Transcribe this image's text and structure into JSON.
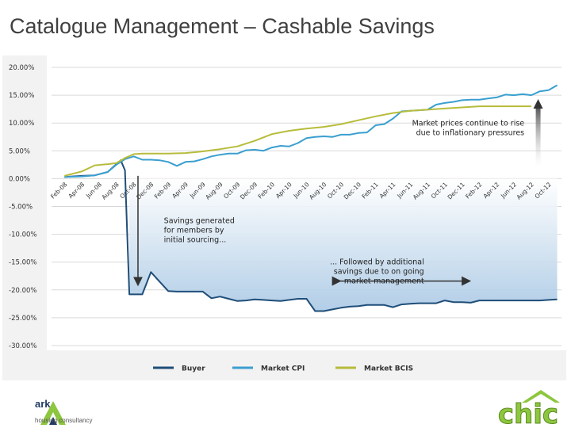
{
  "slide": {
    "title": "Catalogue Management – Cashable Savings"
  },
  "logos": {
    "left": {
      "name": "ark",
      "subtitle": "housing consultancy"
    },
    "right": {
      "name": "chic"
    }
  },
  "colors": {
    "buyer": "#1f4e79",
    "cpi": "#3a9fd0",
    "bcis": "#b7bc3b",
    "shade_top": "#ffffff",
    "shade_bottom": "#a9c8e4"
  },
  "chart_data": {
    "type": "line",
    "title": "",
    "xlabel": "",
    "ylabel": "",
    "ylim": [
      -30,
      20
    ],
    "yticks": [
      20,
      15,
      10,
      5,
      0,
      -5,
      -10,
      -15,
      -20,
      -25,
      -30
    ],
    "ytick_labels": [
      "20.00%",
      "15.00%",
      "10.00%",
      "5.00%",
      "0.00%",
      "-5.00%",
      "-10.00%",
      "-15.00%",
      "-20.00%",
      "-25.00%",
      "-30.00%"
    ],
    "x_ticks": [
      "Feb-08",
      "Apr-08",
      "Jun-08",
      "Aug-08",
      "Oct-08",
      "Dec-08",
      "Feb-09",
      "Apr-09",
      "Jun-09",
      "Aug-09",
      "Oct-09",
      "Dec-09",
      "Feb-10",
      "Apr-10",
      "Jun-10",
      "Aug-10",
      "Oct-10",
      "Dec-10",
      "Feb-11",
      "Apr-11",
      "Jun-11",
      "Aug-11",
      "Oct-11",
      "Dec-11",
      "Feb-12",
      "Apr-12",
      "Jun-12",
      "Aug-12",
      "Oct-12"
    ],
    "x_tick_months": [
      0,
      2,
      4,
      6,
      8,
      10,
      12,
      14,
      16,
      18,
      20,
      22,
      24,
      26,
      28,
      30,
      32,
      34,
      36,
      38,
      40,
      42,
      44,
      46,
      48,
      50,
      52,
      54,
      56
    ],
    "x_start": "Feb-08",
    "x_range_months": [
      -1.5,
      57.5
    ],
    "legend_position": "bottom",
    "grid": true,
    "series": [
      {
        "name": "Buyer",
        "color_key": "buyer",
        "months": [
          0,
          2,
          3.5,
          5,
          6,
          6.5,
          7,
          7.5,
          9,
          10,
          11,
          12,
          13,
          14,
          15,
          16,
          17,
          18,
          19,
          20,
          21,
          22,
          23,
          24,
          25,
          26,
          27,
          28,
          29,
          30,
          31,
          32,
          33,
          34,
          35,
          36,
          37,
          38,
          39,
          40,
          41,
          42,
          43,
          44,
          45,
          46,
          47,
          48,
          49,
          50,
          51,
          52,
          53,
          54,
          55,
          56,
          57
        ],
        "values": [
          0.3,
          0.5,
          0.6,
          1.2,
          2.6,
          3.3,
          1.5,
          -20.8,
          -20.8,
          -16.8,
          -18.5,
          -20.2,
          -20.3,
          -20.3,
          -20.3,
          -20.3,
          -21.5,
          -21.2,
          -21.6,
          -22.0,
          -21.9,
          -21.7,
          -21.8,
          -21.9,
          -22.0,
          -21.8,
          -21.6,
          -21.6,
          -23.8,
          -23.8,
          -23.5,
          -23.2,
          -23.0,
          -22.9,
          -22.7,
          -22.7,
          -22.7,
          -23.1,
          -22.6,
          -22.5,
          -22.4,
          -22.4,
          -22.4,
          -21.9,
          -22.2,
          -22.2,
          -22.3,
          -21.9,
          -21.9,
          -21.9,
          -21.9,
          -21.9,
          -21.9,
          -21.9,
          -21.9,
          -21.8,
          -21.7
        ]
      },
      {
        "name": "Market CPI",
        "color_key": "cpi",
        "months": [
          0,
          2,
          3.5,
          5,
          6,
          7,
          8,
          9,
          10,
          11,
          12,
          13,
          14,
          15,
          16,
          17,
          18,
          19,
          20,
          21,
          22,
          23,
          24,
          25,
          26,
          27,
          28,
          29,
          30,
          31,
          32,
          33,
          34,
          35,
          36,
          37,
          38,
          39,
          40,
          41,
          42,
          43,
          44,
          45,
          46,
          47,
          48,
          49,
          50,
          51,
          52,
          53,
          54,
          55,
          56,
          57
        ],
        "values": [
          0.3,
          0.4,
          0.6,
          1.2,
          2.5,
          3.5,
          4.0,
          3.4,
          3.4,
          3.3,
          3.0,
          2.3,
          3.0,
          3.1,
          3.5,
          4.0,
          4.3,
          4.5,
          4.5,
          5.1,
          5.2,
          5.0,
          5.6,
          5.9,
          5.8,
          6.4,
          7.3,
          7.5,
          7.6,
          7.5,
          7.9,
          7.9,
          8.2,
          8.3,
          9.6,
          9.8,
          10.8,
          12.1,
          12.2,
          12.3,
          12.4,
          13.3,
          13.6,
          13.8,
          14.1,
          14.2,
          14.2,
          14.4,
          14.6,
          15.1,
          15.0,
          15.2,
          15.0,
          15.7,
          15.9,
          16.8
        ]
      },
      {
        "name": "Market BCIS",
        "color_key": "bcis",
        "months": [
          0,
          2,
          3.5,
          5,
          6,
          7,
          8,
          9,
          10,
          12,
          14,
          16,
          18,
          20,
          22,
          24,
          26,
          28,
          30,
          32,
          34,
          36,
          38,
          40,
          42,
          44,
          46,
          48,
          50,
          52,
          54
        ],
        "values": [
          0.5,
          1.3,
          2.4,
          2.6,
          2.8,
          3.7,
          4.4,
          4.5,
          4.5,
          4.5,
          4.6,
          4.9,
          5.3,
          5.8,
          6.8,
          8.0,
          8.6,
          9.0,
          9.3,
          9.8,
          10.5,
          11.2,
          11.8,
          12.2,
          12.4,
          12.6,
          12.8,
          13.0,
          13.0,
          13.0,
          13.0
        ]
      }
    ],
    "annotations": [
      {
        "id": "market",
        "lines": [
          "Market prices continue to rise",
          "due to inflationary pressures"
        ]
      },
      {
        "id": "initial",
        "lines": [
          "Savings generated",
          "for members by",
          "initial sourcing..."
        ]
      },
      {
        "id": "ongoing",
        "lines": [
          "... Followed by additional",
          "savings due to on going",
          "market-management"
        ]
      }
    ]
  }
}
